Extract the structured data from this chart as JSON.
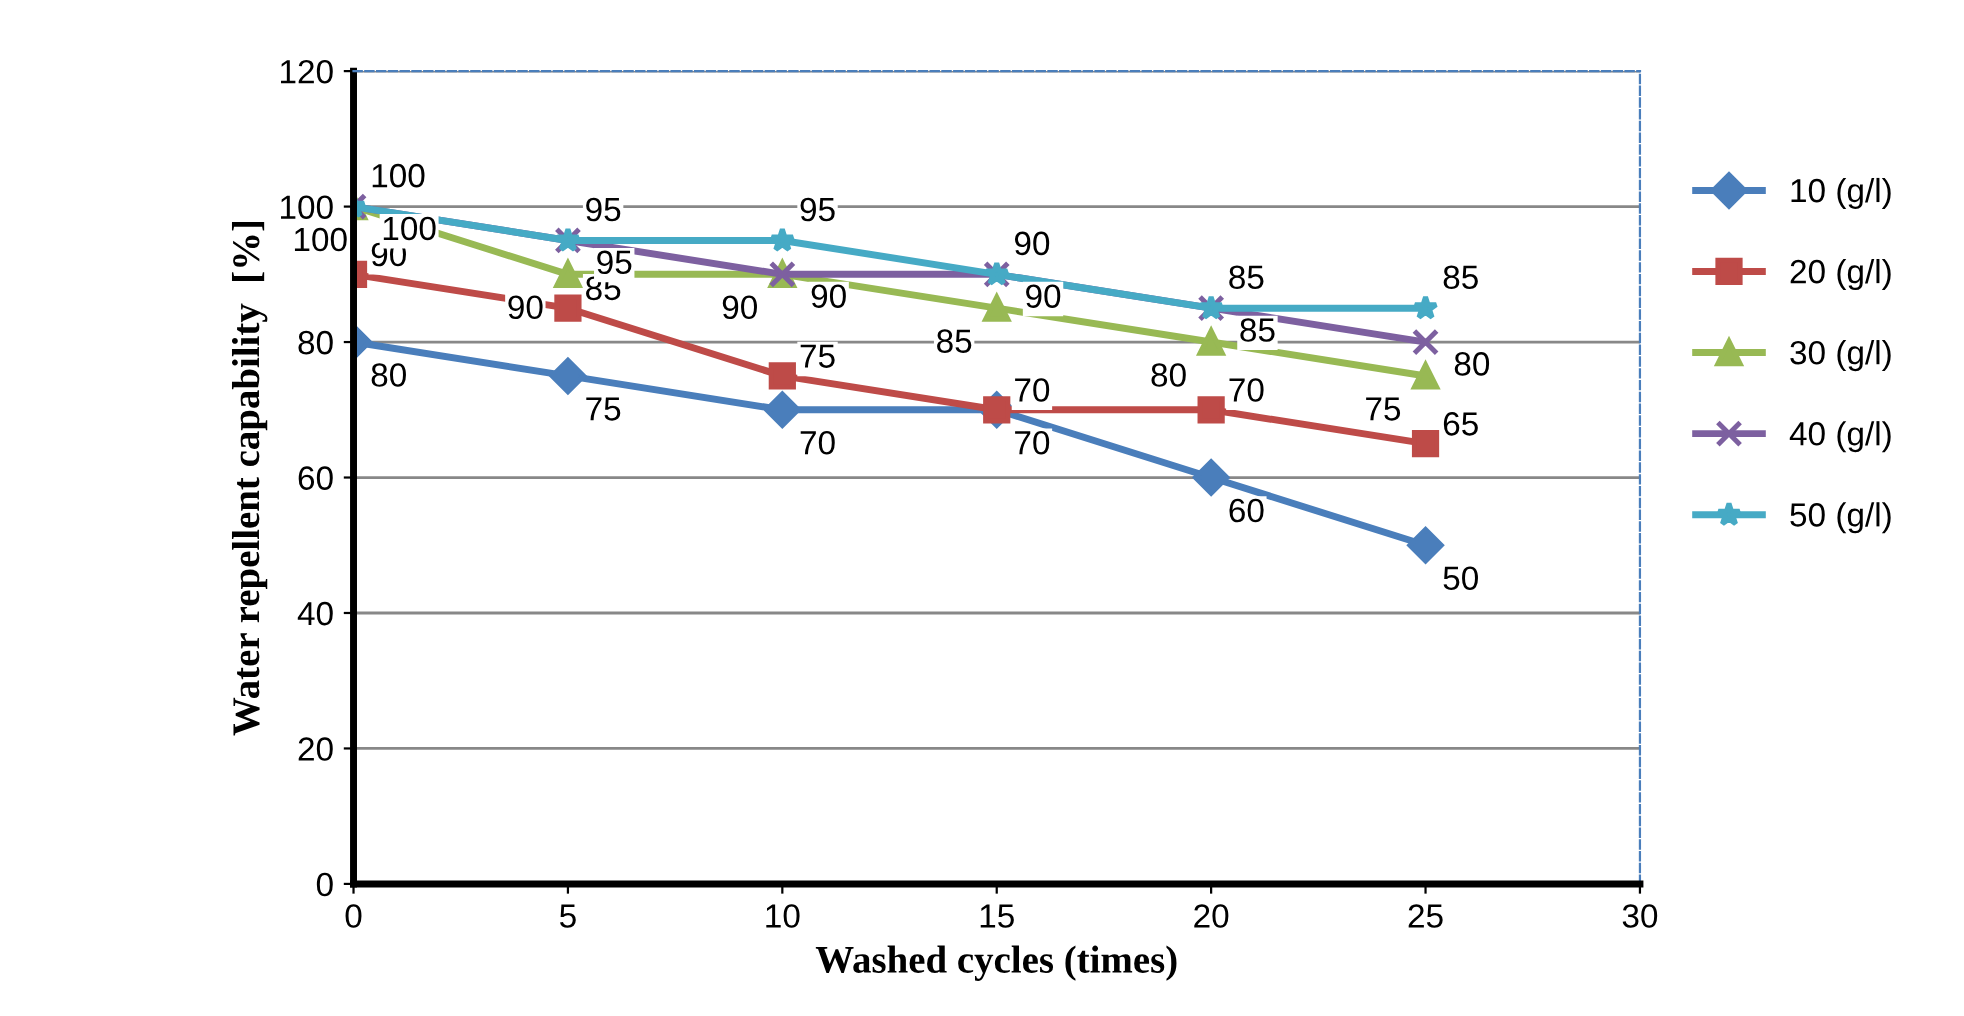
{
  "chart_data": {
    "type": "line",
    "xlabel": "Washed cycles (times)",
    "ylabel": "Water repellent capability  [%]",
    "x": [
      0,
      5,
      10,
      15,
      20,
      25
    ],
    "series": [
      {
        "name": "10 (g/l)",
        "color": "#4a7ebb",
        "marker": "diamond",
        "values": [
          80,
          75,
          70,
          70,
          60,
          50
        ]
      },
      {
        "name": "20 (g/l)",
        "color": "#be4b48",
        "marker": "square",
        "values": [
          90,
          85,
          75,
          70,
          70,
          65
        ]
      },
      {
        "name": "30 (g/l)",
        "color": "#98b954",
        "marker": "triangle",
        "values": [
          100,
          90,
          90,
          85,
          80,
          75
        ]
      },
      {
        "name": "40 (g/l)",
        "color": "#7d60a0",
        "marker": "cross",
        "values": [
          100,
          95,
          90,
          90,
          85,
          80
        ]
      },
      {
        "name": "50 (g/l)",
        "color": "#46aac5",
        "marker": "star",
        "values": [
          100,
          95,
          95,
          90,
          85,
          85
        ]
      }
    ],
    "xlim": [
      0,
      30
    ],
    "xticks": [
      0,
      5,
      10,
      15,
      20,
      25,
      30
    ],
    "ylim": [
      0,
      120
    ],
    "yticks": [
      0,
      20,
      40,
      60,
      80,
      100,
      120
    ],
    "grid": "y",
    "legend": "right",
    "data_labels": true,
    "line_style": "solid"
  }
}
